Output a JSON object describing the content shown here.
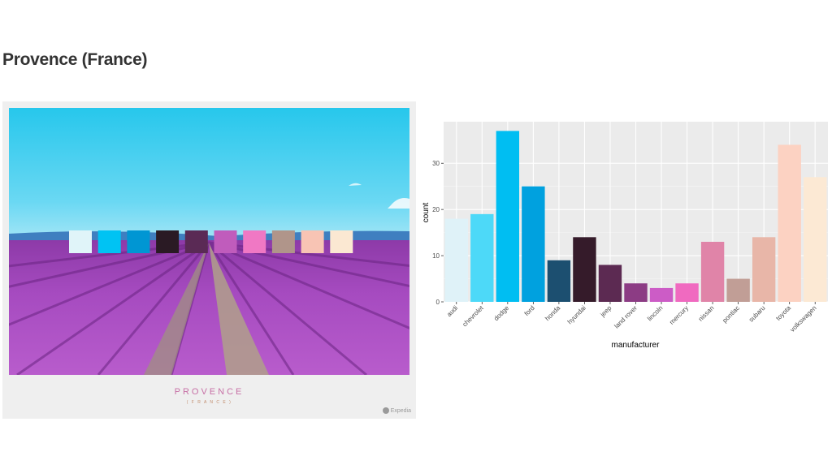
{
  "page": {
    "title": "Provence (France)"
  },
  "photo_card": {
    "caption_main": "PROVENCE",
    "caption_sub": "( F R A N C E )",
    "brand": "Expedia"
  },
  "palette": [
    "#e0f4f9",
    "#00c3f3",
    "#0096d3",
    "#2a1a24",
    "#5a2a55",
    "#c05cbc",
    "#f078c4",
    "#b0958a",
    "#f8c4b4",
    "#fbe8d2"
  ],
  "chart_data": {
    "type": "bar",
    "categories": [
      "audi",
      "chevrolet",
      "dodge",
      "ford",
      "honda",
      "hyundai",
      "jeep",
      "land rover",
      "lincoln",
      "mercury",
      "nissan",
      "pontiac",
      "subaru",
      "toyota",
      "volkswagen"
    ],
    "values": [
      18,
      19,
      37,
      25,
      9,
      14,
      8,
      4,
      3,
      4,
      13,
      5,
      14,
      34,
      27
    ],
    "colors": [
      "#dff2f8",
      "#4dd9f8",
      "#00bef2",
      "#00a1df",
      "#1c4f70",
      "#351b2a",
      "#5c2a52",
      "#8c3c84",
      "#cc5cc6",
      "#f06ac0",
      "#e084a8",
      "#c19e96",
      "#e8b6a8",
      "#fcd2c2",
      "#fce9d4"
    ],
    "xlabel": "manufacturer",
    "ylabel": "count",
    "ylim": [
      0,
      39
    ],
    "yticks": [
      0,
      10,
      20,
      30
    ],
    "grid": true,
    "legend": "none"
  }
}
